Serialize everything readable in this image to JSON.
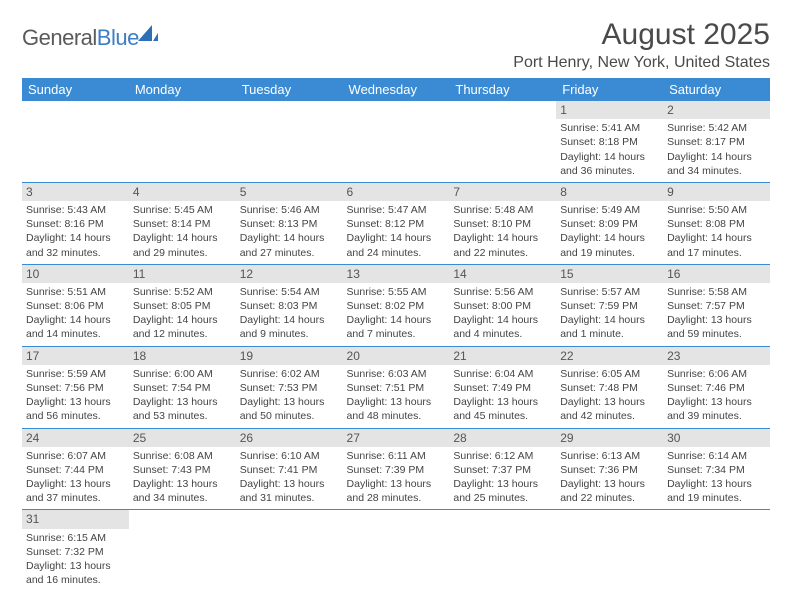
{
  "logo": {
    "part1": "General",
    "part2": "Blue"
  },
  "title": "August 2025",
  "location": "Port Henry, New York, United States",
  "columns": [
    "Sunday",
    "Monday",
    "Tuesday",
    "Wednesday",
    "Thursday",
    "Friday",
    "Saturday"
  ],
  "colors": {
    "header_bg": "#3b8bd4",
    "header_text": "#ffffff",
    "daynum_bg": "#e4e4e4",
    "text": "#444444",
    "rule": "#3b8bd4"
  },
  "weeks": [
    [
      null,
      null,
      null,
      null,
      null,
      {
        "d": "1",
        "sr": "5:41 AM",
        "ss": "8:18 PM",
        "dl": "14 hours and 36 minutes."
      },
      {
        "d": "2",
        "sr": "5:42 AM",
        "ss": "8:17 PM",
        "dl": "14 hours and 34 minutes."
      }
    ],
    [
      {
        "d": "3",
        "sr": "5:43 AM",
        "ss": "8:16 PM",
        "dl": "14 hours and 32 minutes."
      },
      {
        "d": "4",
        "sr": "5:45 AM",
        "ss": "8:14 PM",
        "dl": "14 hours and 29 minutes."
      },
      {
        "d": "5",
        "sr": "5:46 AM",
        "ss": "8:13 PM",
        "dl": "14 hours and 27 minutes."
      },
      {
        "d": "6",
        "sr": "5:47 AM",
        "ss": "8:12 PM",
        "dl": "14 hours and 24 minutes."
      },
      {
        "d": "7",
        "sr": "5:48 AM",
        "ss": "8:10 PM",
        "dl": "14 hours and 22 minutes."
      },
      {
        "d": "8",
        "sr": "5:49 AM",
        "ss": "8:09 PM",
        "dl": "14 hours and 19 minutes."
      },
      {
        "d": "9",
        "sr": "5:50 AM",
        "ss": "8:08 PM",
        "dl": "14 hours and 17 minutes."
      }
    ],
    [
      {
        "d": "10",
        "sr": "5:51 AM",
        "ss": "8:06 PM",
        "dl": "14 hours and 14 minutes."
      },
      {
        "d": "11",
        "sr": "5:52 AM",
        "ss": "8:05 PM",
        "dl": "14 hours and 12 minutes."
      },
      {
        "d": "12",
        "sr": "5:54 AM",
        "ss": "8:03 PM",
        "dl": "14 hours and 9 minutes."
      },
      {
        "d": "13",
        "sr": "5:55 AM",
        "ss": "8:02 PM",
        "dl": "14 hours and 7 minutes."
      },
      {
        "d": "14",
        "sr": "5:56 AM",
        "ss": "8:00 PM",
        "dl": "14 hours and 4 minutes."
      },
      {
        "d": "15",
        "sr": "5:57 AM",
        "ss": "7:59 PM",
        "dl": "14 hours and 1 minute."
      },
      {
        "d": "16",
        "sr": "5:58 AM",
        "ss": "7:57 PM",
        "dl": "13 hours and 59 minutes."
      }
    ],
    [
      {
        "d": "17",
        "sr": "5:59 AM",
        "ss": "7:56 PM",
        "dl": "13 hours and 56 minutes."
      },
      {
        "d": "18",
        "sr": "6:00 AM",
        "ss": "7:54 PM",
        "dl": "13 hours and 53 minutes."
      },
      {
        "d": "19",
        "sr": "6:02 AM",
        "ss": "7:53 PM",
        "dl": "13 hours and 50 minutes."
      },
      {
        "d": "20",
        "sr": "6:03 AM",
        "ss": "7:51 PM",
        "dl": "13 hours and 48 minutes."
      },
      {
        "d": "21",
        "sr": "6:04 AM",
        "ss": "7:49 PM",
        "dl": "13 hours and 45 minutes."
      },
      {
        "d": "22",
        "sr": "6:05 AM",
        "ss": "7:48 PM",
        "dl": "13 hours and 42 minutes."
      },
      {
        "d": "23",
        "sr": "6:06 AM",
        "ss": "7:46 PM",
        "dl": "13 hours and 39 minutes."
      }
    ],
    [
      {
        "d": "24",
        "sr": "6:07 AM",
        "ss": "7:44 PM",
        "dl": "13 hours and 37 minutes."
      },
      {
        "d": "25",
        "sr": "6:08 AM",
        "ss": "7:43 PM",
        "dl": "13 hours and 34 minutes."
      },
      {
        "d": "26",
        "sr": "6:10 AM",
        "ss": "7:41 PM",
        "dl": "13 hours and 31 minutes."
      },
      {
        "d": "27",
        "sr": "6:11 AM",
        "ss": "7:39 PM",
        "dl": "13 hours and 28 minutes."
      },
      {
        "d": "28",
        "sr": "6:12 AM",
        "ss": "7:37 PM",
        "dl": "13 hours and 25 minutes."
      },
      {
        "d": "29",
        "sr": "6:13 AM",
        "ss": "7:36 PM",
        "dl": "13 hours and 22 minutes."
      },
      {
        "d": "30",
        "sr": "6:14 AM",
        "ss": "7:34 PM",
        "dl": "13 hours and 19 minutes."
      }
    ],
    [
      {
        "d": "31",
        "sr": "6:15 AM",
        "ss": "7:32 PM",
        "dl": "13 hours and 16 minutes."
      },
      null,
      null,
      null,
      null,
      null,
      null
    ]
  ],
  "labels": {
    "sunrise": "Sunrise: ",
    "sunset": "Sunset: ",
    "daylight": "Daylight: "
  }
}
